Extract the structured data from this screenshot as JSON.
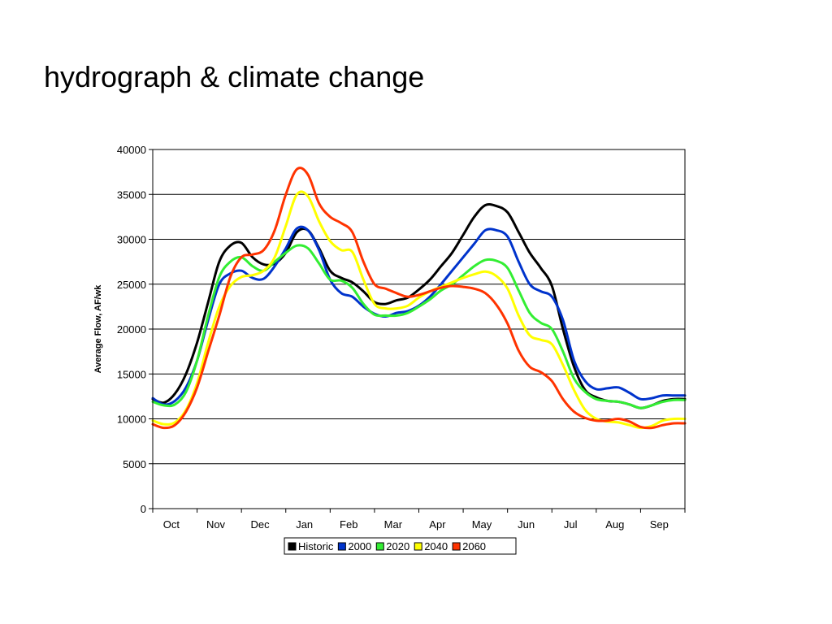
{
  "slide": {
    "title": "hydrograph & climate change"
  },
  "chart_data": {
    "type": "line",
    "title": "",
    "xlabel": "",
    "ylabel": "Average Flow, AF/wk",
    "ylim": [
      0,
      40000
    ],
    "yticks": [
      0,
      5000,
      10000,
      15000,
      20000,
      25000,
      30000,
      35000,
      40000
    ],
    "grid": true,
    "legend_position": "bottom",
    "categories": [
      "Oct",
      "Nov",
      "Dec",
      "Jan",
      "Feb",
      "Mar",
      "Apr",
      "May",
      "Jun",
      "Jul",
      "Aug",
      "Sep"
    ],
    "x": [
      0,
      0.25,
      0.5,
      0.75,
      1,
      1.25,
      1.5,
      1.75,
      2,
      2.25,
      2.5,
      2.75,
      3,
      3.25,
      3.5,
      3.75,
      4,
      4.25,
      4.5,
      4.75,
      5,
      5.25,
      5.5,
      5.75,
      6,
      6.25,
      6.5,
      6.75,
      7,
      7.25,
      7.5,
      7.75,
      8,
      8.25,
      8.5,
      8.75,
      9,
      9.25,
      9.5,
      9.75,
      10,
      10.25,
      10.5,
      10.75,
      11,
      11.25,
      11.5,
      11.75,
      12
    ],
    "series": [
      {
        "name": "Historic",
        "color": "#000000",
        "values": [
          12200,
          11800,
          12800,
          15000,
          18500,
          23000,
          27500,
          29300,
          29600,
          28000,
          27200,
          27300,
          28500,
          30800,
          31000,
          29000,
          26500,
          25700,
          25200,
          24200,
          23000,
          22800,
          23200,
          23500,
          24400,
          25500,
          27000,
          28500,
          30500,
          32500,
          33800,
          33700,
          33000,
          30800,
          28500,
          26800,
          24800,
          20000,
          15800,
          13200,
          12400,
          12000,
          11900,
          11600,
          11200,
          11500,
          12000,
          12200,
          12200
        ]
      },
      {
        "name": "2000",
        "color": "#0033cc",
        "values": [
          12300,
          11600,
          12000,
          13500,
          16500,
          21000,
          25000,
          26200,
          26500,
          25700,
          25600,
          27000,
          29000,
          31200,
          31000,
          28800,
          25500,
          24000,
          23600,
          22500,
          21700,
          21400,
          21800,
          22000,
          22600,
          23600,
          25000,
          26500,
          28000,
          29500,
          31000,
          31000,
          30300,
          27500,
          25000,
          24200,
          23600,
          21000,
          16500,
          14200,
          13300,
          13400,
          13500,
          12900,
          12200,
          12300,
          12600,
          12600,
          12600
        ]
      },
      {
        "name": "2020",
        "color": "#33ee33",
        "values": [
          11900,
          11500,
          11600,
          13000,
          16500,
          21500,
          25800,
          27500,
          28000,
          27000,
          26500,
          27500,
          28500,
          29300,
          29000,
          27300,
          25500,
          25400,
          24600,
          22800,
          21600,
          21500,
          21500,
          21800,
          22500,
          23300,
          24300,
          25000,
          26000,
          27000,
          27700,
          27600,
          26800,
          24300,
          21800,
          20700,
          20000,
          17500,
          14500,
          13000,
          12200,
          12000,
          11900,
          11600,
          11200,
          11500,
          11900,
          12100,
          12100
        ]
      },
      {
        "name": "2040",
        "color": "#ffff00",
        "values": [
          9800,
          9400,
          9600,
          11000,
          14000,
          18500,
          22500,
          24800,
          25800,
          26000,
          26500,
          28000,
          31500,
          35000,
          34800,
          32000,
          29800,
          28800,
          28600,
          25500,
          22800,
          22300,
          22300,
          22600,
          23500,
          24200,
          24700,
          25200,
          25700,
          26100,
          26400,
          25900,
          24500,
          21500,
          19300,
          18800,
          18300,
          16000,
          13200,
          11000,
          10000,
          9700,
          9600,
          9300,
          9000,
          9200,
          9800,
          10000,
          10000
        ]
      },
      {
        "name": "2060",
        "color": "#ff3300",
        "values": [
          9400,
          9000,
          9300,
          10800,
          13500,
          17500,
          21500,
          25800,
          28000,
          28300,
          28800,
          31000,
          35000,
          37800,
          37200,
          34000,
          32500,
          31800,
          30800,
          27500,
          25000,
          24500,
          24000,
          23600,
          23800,
          24200,
          24600,
          24800,
          24700,
          24500,
          24000,
          22700,
          20600,
          17600,
          15800,
          15200,
          14200,
          12200,
          10800,
          10100,
          9800,
          9800,
          10000,
          9700,
          9100,
          9000,
          9300,
          9500,
          9500
        ]
      }
    ]
  }
}
